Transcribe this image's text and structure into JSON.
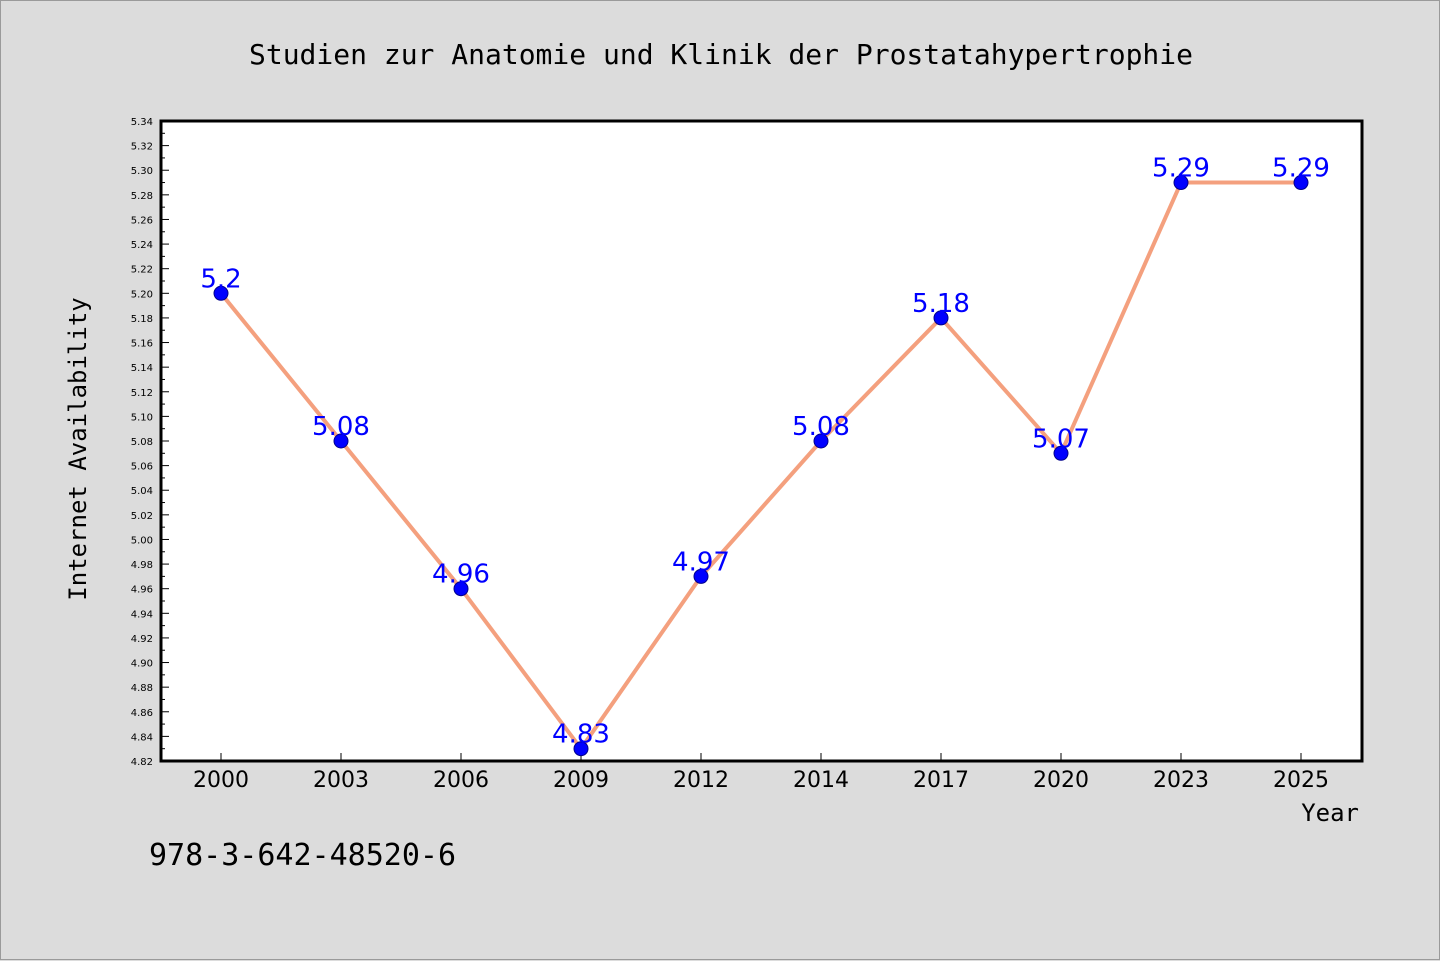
{
  "chart_data": {
    "type": "line",
    "title": "Studien zur Anatomie und Klinik der Prostatahypertrophie",
    "xlabel": "Year",
    "ylabel": "Internet Availability",
    "categories": [
      "2000",
      "2003",
      "2006",
      "2009",
      "2012",
      "2014",
      "2017",
      "2020",
      "2023",
      "2025"
    ],
    "series": [
      {
        "values": [
          5.2,
          5.08,
          4.96,
          4.83,
          4.97,
          5.08,
          5.18,
          5.07,
          5.29,
          5.29
        ],
        "labels": [
          "5.2",
          "5.08",
          "4.96",
          "4.83",
          "4.97",
          "5.08",
          "5.18",
          "5.07",
          "5.29",
          "5.29"
        ],
        "line_color": "#f4a07e",
        "marker_color": "#0000ff"
      }
    ],
    "ylim": [
      4.82,
      5.34
    ],
    "ytick_step": 0.02,
    "grid": false,
    "legend": "none",
    "annotation_color": "#0000ff"
  },
  "footer": {
    "isbn": "978-3-642-48520-6"
  }
}
